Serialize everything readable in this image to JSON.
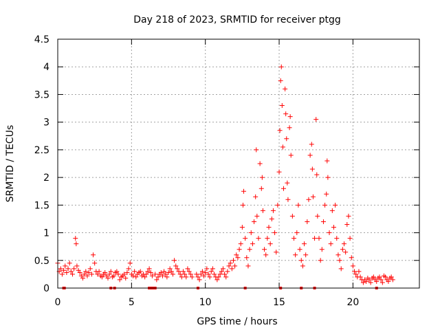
{
  "chart_data": {
    "type": "scatter",
    "title": "Day 218 of 2023, SRMTID for receiver ptgg",
    "xlabel": "GPS time / hours",
    "ylabel": "SRMTID / TECUs",
    "xlim": [
      0,
      24.5
    ],
    "ylim": [
      0,
      4.5
    ],
    "xticks": [
      0,
      5,
      10,
      15,
      20
    ],
    "xtick_labels": [
      "0",
      "5",
      "10",
      "15",
      "20"
    ],
    "yticks": [
      0,
      0.5,
      1,
      1.5,
      2,
      2.5,
      3,
      3.5,
      4,
      4.5
    ],
    "ytick_labels": [
      "0",
      "0.5",
      "1",
      "1.5",
      "2",
      "2.5",
      "3",
      "3.5",
      "4",
      "4.5"
    ],
    "grid": true,
    "marker": "+",
    "color": "#ff0000",
    "series": [
      {
        "name": "SRMTID",
        "points": [
          [
            0.0,
            0.45
          ],
          [
            0.1,
            0.3
          ],
          [
            0.2,
            0.35
          ],
          [
            0.3,
            0.25
          ],
          [
            0.4,
            0.32
          ],
          [
            0.5,
            0.4
          ],
          [
            0.6,
            0.28
          ],
          [
            0.7,
            0.35
          ],
          [
            0.8,
            0.45
          ],
          [
            0.9,
            0.3
          ],
          [
            1.0,
            0.25
          ],
          [
            1.1,
            0.35
          ],
          [
            1.2,
            0.9
          ],
          [
            1.25,
            0.8
          ],
          [
            1.3,
            0.4
          ],
          [
            1.4,
            0.32
          ],
          [
            1.5,
            0.28
          ],
          [
            1.6,
            0.22
          ],
          [
            1.7,
            0.18
          ],
          [
            1.8,
            0.25
          ],
          [
            1.9,
            0.3
          ],
          [
            2.0,
            0.22
          ],
          [
            2.1,
            0.28
          ],
          [
            2.2,
            0.35
          ],
          [
            2.3,
            0.25
          ],
          [
            2.4,
            0.6
          ],
          [
            2.5,
            0.45
          ],
          [
            2.6,
            0.3
          ],
          [
            2.7,
            0.25
          ],
          [
            2.8,
            0.3
          ],
          [
            2.9,
            0.22
          ],
          [
            3.0,
            0.2
          ],
          [
            3.1,
            0.25
          ],
          [
            3.2,
            0.28
          ],
          [
            3.3,
            0.22
          ],
          [
            3.4,
            0.18
          ],
          [
            3.5,
            0.25
          ],
          [
            3.6,
            0.3
          ],
          [
            3.7,
            0.2
          ],
          [
            3.8,
            0.22
          ],
          [
            3.9,
            0.28
          ],
          [
            4.0,
            0.3
          ],
          [
            4.1,
            0.25
          ],
          [
            4.2,
            0.15
          ],
          [
            4.3,
            0.2
          ],
          [
            4.4,
            0.22
          ],
          [
            4.5,
            0.25
          ],
          [
            4.6,
            0.18
          ],
          [
            4.7,
            0.28
          ],
          [
            4.8,
            0.35
          ],
          [
            4.9,
            0.45
          ],
          [
            5.0,
            0.25
          ],
          [
            5.1,
            0.22
          ],
          [
            5.2,
            0.3
          ],
          [
            5.3,
            0.2
          ],
          [
            5.4,
            0.25
          ],
          [
            5.5,
            0.28
          ],
          [
            5.6,
            0.3
          ],
          [
            5.7,
            0.22
          ],
          [
            5.8,
            0.25
          ],
          [
            5.9,
            0.2
          ],
          [
            6.0,
            0.25
          ],
          [
            6.1,
            0.3
          ],
          [
            6.2,
            0.35
          ],
          [
            6.3,
            0.28
          ],
          [
            6.4,
            0.22
          ],
          [
            6.6,
            0.25
          ],
          [
            6.7,
            0.15
          ],
          [
            6.8,
            0.2
          ],
          [
            6.9,
            0.25
          ],
          [
            7.0,
            0.28
          ],
          [
            7.1,
            0.22
          ],
          [
            7.2,
            0.3
          ],
          [
            7.3,
            0.25
          ],
          [
            7.4,
            0.2
          ],
          [
            7.5,
            0.28
          ],
          [
            7.6,
            0.35
          ],
          [
            7.7,
            0.3
          ],
          [
            7.8,
            0.25
          ],
          [
            7.9,
            0.5
          ],
          [
            8.0,
            0.4
          ],
          [
            8.1,
            0.35
          ],
          [
            8.2,
            0.3
          ],
          [
            8.3,
            0.25
          ],
          [
            8.4,
            0.2
          ],
          [
            8.5,
            0.3
          ],
          [
            8.6,
            0.25
          ],
          [
            8.7,
            0.2
          ],
          [
            8.8,
            0.35
          ],
          [
            8.9,
            0.3
          ],
          [
            9.0,
            0.25
          ],
          [
            9.1,
            0.2
          ],
          [
            9.4,
            0.25
          ],
          [
            9.5,
            0.2
          ],
          [
            9.6,
            0.15
          ],
          [
            9.7,
            0.25
          ],
          [
            9.8,
            0.3
          ],
          [
            9.9,
            0.22
          ],
          [
            10.0,
            0.28
          ],
          [
            10.1,
            0.35
          ],
          [
            10.2,
            0.25
          ],
          [
            10.3,
            0.2
          ],
          [
            10.4,
            0.3
          ],
          [
            10.5,
            0.35
          ],
          [
            10.6,
            0.25
          ],
          [
            10.7,
            0.2
          ],
          [
            10.8,
            0.15
          ],
          [
            10.9,
            0.2
          ],
          [
            11.0,
            0.25
          ],
          [
            11.1,
            0.3
          ],
          [
            11.2,
            0.35
          ],
          [
            11.3,
            0.25
          ],
          [
            11.4,
            0.2
          ],
          [
            11.5,
            0.3
          ],
          [
            11.6,
            0.4
          ],
          [
            11.7,
            0.45
          ],
          [
            11.8,
            0.35
          ],
          [
            11.9,
            0.5
          ],
          [
            12.0,
            0.4
          ],
          [
            12.1,
            0.6
          ],
          [
            12.2,
            0.55
          ],
          [
            12.3,
            0.7
          ],
          [
            12.4,
            0.8
          ],
          [
            12.5,
            1.1
          ],
          [
            12.55,
            1.5
          ],
          [
            12.6,
            1.75
          ],
          [
            12.7,
            0.9
          ],
          [
            12.8,
            0.55
          ],
          [
            12.9,
            0.4
          ],
          [
            13.0,
            0.7
          ],
          [
            13.1,
            1.0
          ],
          [
            13.2,
            0.8
          ],
          [
            13.3,
            1.2
          ],
          [
            13.4,
            1.65
          ],
          [
            13.45,
            2.5
          ],
          [
            13.5,
            1.3
          ],
          [
            13.6,
            0.9
          ],
          [
            13.7,
            2.25
          ],
          [
            13.8,
            1.8
          ],
          [
            13.85,
            2.0
          ],
          [
            13.9,
            1.4
          ],
          [
            14.0,
            0.7
          ],
          [
            14.1,
            0.6
          ],
          [
            14.2,
            0.9
          ],
          [
            14.3,
            1.1
          ],
          [
            14.4,
            0.8
          ],
          [
            14.5,
            1.25
          ],
          [
            14.6,
            1.4
          ],
          [
            14.7,
            1.0
          ],
          [
            14.8,
            0.65
          ],
          [
            14.9,
            1.5
          ],
          [
            15.0,
            2.1
          ],
          [
            15.05,
            2.85
          ],
          [
            15.1,
            3.75
          ],
          [
            15.15,
            4.0
          ],
          [
            15.2,
            3.3
          ],
          [
            15.25,
            2.55
          ],
          [
            15.3,
            1.8
          ],
          [
            15.4,
            3.6
          ],
          [
            15.45,
            3.15
          ],
          [
            15.5,
            2.7
          ],
          [
            15.55,
            1.9
          ],
          [
            15.6,
            1.6
          ],
          [
            15.7,
            2.9
          ],
          [
            15.75,
            3.1
          ],
          [
            15.8,
            2.4
          ],
          [
            15.9,
            1.3
          ],
          [
            16.0,
            0.9
          ],
          [
            16.1,
            0.6
          ],
          [
            16.2,
            1.0
          ],
          [
            16.3,
            1.5
          ],
          [
            16.4,
            0.7
          ],
          [
            16.5,
            0.5
          ],
          [
            16.6,
            0.4
          ],
          [
            16.7,
            0.8
          ],
          [
            16.8,
            0.6
          ],
          [
            16.9,
            1.2
          ],
          [
            17.0,
            1.6
          ],
          [
            17.1,
            2.4
          ],
          [
            17.2,
            2.6
          ],
          [
            17.25,
            2.15
          ],
          [
            17.3,
            1.65
          ],
          [
            17.4,
            0.9
          ],
          [
            17.5,
            3.05
          ],
          [
            17.55,
            2.05
          ],
          [
            17.6,
            1.3
          ],
          [
            17.7,
            0.9
          ],
          [
            17.8,
            0.5
          ],
          [
            17.9,
            0.7
          ],
          [
            18.0,
            1.2
          ],
          [
            18.1,
            1.5
          ],
          [
            18.2,
            1.7
          ],
          [
            18.25,
            2.3
          ],
          [
            18.3,
            2.0
          ],
          [
            18.4,
            1.0
          ],
          [
            18.5,
            0.8
          ],
          [
            18.6,
            1.4
          ],
          [
            18.7,
            1.1
          ],
          [
            18.8,
            1.5
          ],
          [
            18.9,
            0.9
          ],
          [
            19.0,
            0.6
          ],
          [
            19.1,
            0.5
          ],
          [
            19.2,
            0.35
          ],
          [
            19.3,
            0.7
          ],
          [
            19.4,
            0.8
          ],
          [
            19.5,
            0.65
          ],
          [
            19.6,
            1.15
          ],
          [
            19.7,
            1.3
          ],
          [
            19.8,
            0.9
          ],
          [
            19.9,
            0.55
          ],
          [
            20.0,
            0.4
          ],
          [
            20.1,
            0.3
          ],
          [
            20.2,
            0.25
          ],
          [
            20.3,
            0.2
          ],
          [
            20.4,
            0.3
          ],
          [
            20.5,
            0.2
          ],
          [
            20.6,
            0.15
          ],
          [
            20.7,
            0.1
          ],
          [
            20.8,
            0.15
          ],
          [
            20.9,
            0.12
          ],
          [
            21.0,
            0.18
          ],
          [
            21.1,
            0.15
          ],
          [
            21.2,
            0.1
          ],
          [
            21.3,
            0.18
          ],
          [
            21.4,
            0.2
          ],
          [
            21.5,
            0.15
          ],
          [
            21.6,
            0.12
          ],
          [
            21.7,
            0.18
          ],
          [
            21.8,
            0.2
          ],
          [
            21.9,
            0.15
          ],
          [
            22.0,
            0.1
          ],
          [
            22.1,
            0.22
          ],
          [
            22.2,
            0.2
          ],
          [
            22.3,
            0.15
          ],
          [
            22.4,
            0.12
          ],
          [
            22.5,
            0.18
          ],
          [
            22.6,
            0.2
          ],
          [
            22.7,
            0.15
          ]
        ]
      }
    ],
    "baseline_markers": [
      0.4,
      0.45,
      3.6,
      3.85,
      6.2,
      6.3,
      6.4,
      6.5,
      6.6,
      9.5,
      12.7,
      15.1,
      16.5,
      17.4,
      21.6
    ]
  }
}
